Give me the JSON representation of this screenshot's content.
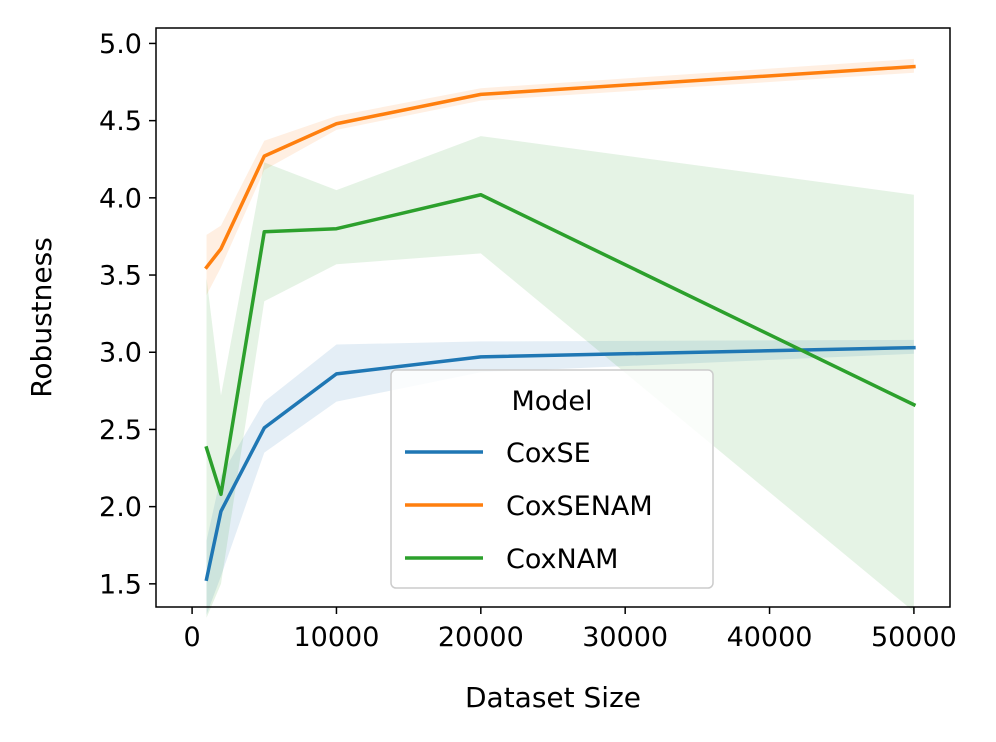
{
  "chart_data": {
    "type": "line",
    "xlabel": "Dataset Size",
    "ylabel": "Robustness",
    "xlim": [
      -2500,
      52500
    ],
    "ylim": [
      1.35,
      5.1
    ],
    "x_ticks": [
      0,
      10000,
      20000,
      30000,
      40000,
      50000
    ],
    "y_ticks": [
      1.5,
      2.0,
      2.5,
      3.0,
      3.5,
      4.0,
      4.5,
      5.0
    ],
    "x_tick_labels": [
      "0",
      "10000",
      "20000",
      "30000",
      "40000",
      "50000"
    ],
    "y_tick_labels": [
      "1.5",
      "2.0",
      "2.5",
      "3.0",
      "3.5",
      "4.0",
      "4.5",
      "5.0"
    ],
    "grid": false,
    "legend": {
      "title": "Model",
      "placement": "lower-center"
    },
    "x": [
      1000,
      2000,
      5000,
      10000,
      20000,
      50000
    ],
    "series": [
      {
        "name": "CoxSE",
        "color": "#1f77b4",
        "values": [
          1.53,
          1.97,
          2.51,
          2.86,
          2.97,
          3.03
        ],
        "lower": [
          1.3,
          1.55,
          2.35,
          2.68,
          2.87,
          2.99
        ],
        "upper": [
          1.78,
          2.2,
          2.68,
          3.05,
          3.07,
          3.08
        ]
      },
      {
        "name": "CoxSENAM",
        "color": "#ff7f0e",
        "values": [
          3.55,
          3.67,
          4.27,
          4.48,
          4.67,
          4.85
        ],
        "lower": [
          3.37,
          3.55,
          4.18,
          4.44,
          4.63,
          4.81
        ],
        "upper": [
          3.76,
          3.82,
          4.37,
          4.53,
          4.71,
          4.9
        ]
      },
      {
        "name": "CoxNAM",
        "color": "#2ca02c",
        "values": [
          2.38,
          2.08,
          3.78,
          3.8,
          4.02,
          2.66
        ],
        "lower": [
          1.28,
          1.5,
          3.33,
          3.57,
          3.64,
          1.32
        ],
        "upper": [
          3.48,
          2.72,
          4.23,
          4.05,
          4.4,
          4.02
        ]
      }
    ]
  }
}
